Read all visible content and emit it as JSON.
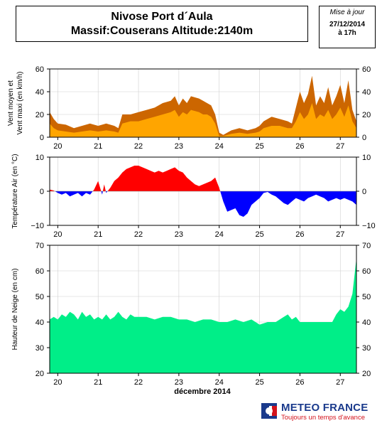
{
  "header": {
    "title_line1": "Nivose Port d´Aula",
    "title_line2": "Massif:Couserans Altitude:2140m",
    "update_label": "Mise à jour",
    "update_date": "27/12/2014",
    "update_time": "à 17h"
  },
  "x_axis_title": "décembre 2014",
  "logo": {
    "name": "METEO FRANCE",
    "tagline": "Toujours un temps d'avance",
    "colors": {
      "blue": "#1a3a8c",
      "red": "#d4131c"
    }
  },
  "chart_data": [
    {
      "type": "area",
      "ylabel_line1": "Vent moyen et",
      "ylabel_line2": "Vent maxi (en km/h)",
      "x_ticks": [
        "20",
        "21",
        "22",
        "23",
        "24",
        "25",
        "26",
        "27"
      ],
      "x_range": [
        19.8,
        27.4
      ],
      "ylim": [
        0,
        60
      ],
      "y_ticks": [
        "0",
        "20",
        "40",
        "60"
      ],
      "grid": true,
      "series": [
        {
          "role": "max",
          "color": "#cc6600",
          "x": [
            19.8,
            19.9,
            20.0,
            20.2,
            20.4,
            20.6,
            20.8,
            21.0,
            21.2,
            21.4,
            21.5,
            21.6,
            21.8,
            22.0,
            22.2,
            22.4,
            22.6,
            22.8,
            22.9,
            23.0,
            23.1,
            23.2,
            23.3,
            23.5,
            23.6,
            23.7,
            23.8,
            23.9,
            24.0,
            24.1,
            24.3,
            24.5,
            24.7,
            24.9,
            25.0,
            25.1,
            25.3,
            25.5,
            25.7,
            25.8,
            25.9,
            26.0,
            26.1,
            26.2,
            26.3,
            26.4,
            26.5,
            26.6,
            26.7,
            26.8,
            26.9,
            27.0,
            27.1,
            27.2,
            27.3,
            27.4
          ],
          "y": [
            22,
            16,
            12,
            11,
            8,
            10,
            12,
            10,
            12,
            10,
            8,
            20,
            20,
            22,
            24,
            26,
            30,
            32,
            36,
            28,
            34,
            30,
            36,
            34,
            32,
            30,
            28,
            20,
            4,
            2,
            6,
            8,
            6,
            8,
            10,
            14,
            18,
            16,
            14,
            12,
            26,
            40,
            30,
            38,
            54,
            28,
            36,
            30,
            44,
            28,
            36,
            46,
            30,
            50,
            24,
            14
          ]
        },
        {
          "role": "moyen",
          "color": "#ffa500",
          "x": [
            19.8,
            19.9,
            20.0,
            20.2,
            20.4,
            20.6,
            20.8,
            21.0,
            21.2,
            21.4,
            21.5,
            21.6,
            21.8,
            22.0,
            22.2,
            22.4,
            22.6,
            22.8,
            22.9,
            23.0,
            23.1,
            23.2,
            23.3,
            23.5,
            23.6,
            23.7,
            23.8,
            23.9,
            24.0,
            24.1,
            24.3,
            24.5,
            24.7,
            24.9,
            25.0,
            25.1,
            25.3,
            25.5,
            25.7,
            25.8,
            25.9,
            26.0,
            26.1,
            26.2,
            26.3,
            26.4,
            26.5,
            26.6,
            26.7,
            26.8,
            26.9,
            27.0,
            27.1,
            27.2,
            27.3,
            27.4
          ],
          "y": [
            12,
            8,
            6,
            5,
            4,
            5,
            6,
            5,
            6,
            5,
            4,
            12,
            14,
            14,
            16,
            18,
            20,
            22,
            24,
            18,
            22,
            20,
            24,
            22,
            20,
            20,
            18,
            12,
            1,
            1,
            3,
            4,
            3,
            4,
            5,
            8,
            10,
            10,
            8,
            8,
            14,
            22,
            16,
            20,
            30,
            16,
            20,
            18,
            24,
            16,
            20,
            26,
            18,
            28,
            14,
            8
          ]
        }
      ]
    },
    {
      "type": "area",
      "ylabel": "Température Air (en °C)",
      "x_ticks": [
        "20",
        "21",
        "22",
        "23",
        "24",
        "25",
        "26",
        "27"
      ],
      "x_range": [
        19.8,
        27.4
      ],
      "ylim": [
        -10,
        10
      ],
      "y_ticks": [
        "10",
        "0",
        "−10"
      ],
      "grid": true,
      "colors": {
        "positive": "#ff0000",
        "negative": "#0000ff"
      },
      "x": [
        19.8,
        19.9,
        20.0,
        20.1,
        20.2,
        20.3,
        20.4,
        20.5,
        20.6,
        20.7,
        20.8,
        20.9,
        21.0,
        21.05,
        21.1,
        21.15,
        21.2,
        21.3,
        21.4,
        21.5,
        21.6,
        21.7,
        21.8,
        21.9,
        22.0,
        22.1,
        22.2,
        22.3,
        22.4,
        22.5,
        22.6,
        22.7,
        22.8,
        22.9,
        23.0,
        23.1,
        23.2,
        23.3,
        23.4,
        23.5,
        23.6,
        23.7,
        23.8,
        23.9,
        24.0,
        24.1,
        24.2,
        24.3,
        24.4,
        24.5,
        24.6,
        24.7,
        24.8,
        24.9,
        25.0,
        25.1,
        25.2,
        25.3,
        25.4,
        25.5,
        25.6,
        25.7,
        25.8,
        25.9,
        26.0,
        26.1,
        26.2,
        26.3,
        26.4,
        26.5,
        26.6,
        26.7,
        26.8,
        26.9,
        27.0,
        27.1,
        27.2,
        27.3,
        27.4
      ],
      "y": [
        0.5,
        0.2,
        -0.5,
        -1.0,
        -0.5,
        -1.5,
        -1.0,
        -0.5,
        -1.5,
        -0.5,
        -1.0,
        0.5,
        3.0,
        1.0,
        -1.0,
        2.0,
        -0.5,
        1.0,
        3.0,
        4.0,
        5.5,
        6.5,
        7.0,
        7.5,
        7.5,
        7.0,
        6.5,
        6.0,
        5.5,
        6.0,
        5.5,
        6.0,
        6.5,
        7.0,
        6.0,
        5.5,
        4.0,
        3.0,
        2.0,
        1.5,
        2.0,
        2.5,
        3.0,
        4.0,
        1.0,
        -3.0,
        -6.0,
        -5.5,
        -5.0,
        -7.0,
        -7.5,
        -6.5,
        -4.0,
        -3.0,
        -2.0,
        -0.5,
        -0.2,
        -1.0,
        -1.5,
        -2.5,
        -3.5,
        -4.0,
        -3.0,
        -2.0,
        -2.5,
        -3.0,
        -2.0,
        -1.5,
        -1.0,
        -1.5,
        -2.0,
        -3.0,
        -2.5,
        -2.0,
        -2.5,
        -2.0,
        -2.5,
        -3.0,
        -4.0
      ]
    },
    {
      "type": "area",
      "ylabel": "Hauteur de Neige (en cm)",
      "x_ticks": [
        "20",
        "21",
        "22",
        "23",
        "24",
        "25",
        "26",
        "27"
      ],
      "x_range": [
        19.8,
        27.4
      ],
      "ylim": [
        20,
        70
      ],
      "y_ticks": [
        "20",
        "30",
        "40",
        "50",
        "60",
        "70"
      ],
      "grid": true,
      "color": "#00ee88",
      "x": [
        19.8,
        19.9,
        20.0,
        20.1,
        20.2,
        20.3,
        20.4,
        20.5,
        20.6,
        20.7,
        20.8,
        20.9,
        21.0,
        21.1,
        21.2,
        21.3,
        21.4,
        21.5,
        21.6,
        21.7,
        21.8,
        21.9,
        22.0,
        22.2,
        22.4,
        22.6,
        22.8,
        23.0,
        23.2,
        23.4,
        23.6,
        23.8,
        24.0,
        24.2,
        24.4,
        24.6,
        24.8,
        25.0,
        25.2,
        25.4,
        25.6,
        25.7,
        25.8,
        25.9,
        26.0,
        26.2,
        26.4,
        26.6,
        26.8,
        26.9,
        27.0,
        27.1,
        27.2,
        27.3,
        27.35,
        27.4
      ],
      "y": [
        41,
        42,
        41,
        43,
        42,
        44,
        43,
        41,
        44,
        42,
        43,
        41,
        42,
        41,
        43,
        41,
        42,
        44,
        42,
        41,
        43,
        42,
        42,
        42,
        41,
        42,
        42,
        41,
        41,
        40,
        41,
        41,
        40,
        40,
        41,
        40,
        41,
        39,
        40,
        40,
        42,
        43,
        41,
        42,
        40,
        40,
        40,
        40,
        40,
        43,
        45,
        44,
        46,
        51,
        58,
        65
      ]
    }
  ]
}
